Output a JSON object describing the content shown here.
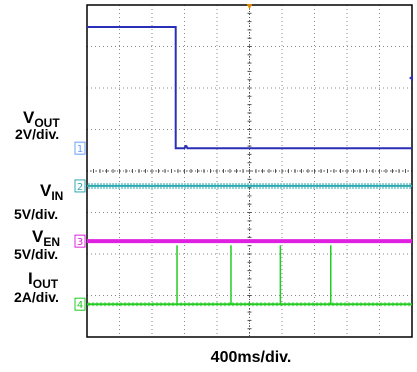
{
  "chart_data": {
    "type": "line",
    "title": "",
    "xlabel": "400ms/div.",
    "x_divisions": 10,
    "y_divisions": 8,
    "grid": true,
    "series": [
      {
        "name": "VOUT",
        "scale": "2V/div.",
        "color": "#2a2fb8",
        "marker": "1",
        "marker_color": "#6aa0ff",
        "x": [
          0,
          2.73,
          2.73,
          3.0,
          3.03,
          3.06,
          3.09,
          10
        ],
        "y": [
          7.47,
          7.47,
          4.55,
          4.55,
          4.6,
          4.6,
          4.55,
          4.55
        ]
      },
      {
        "name": "VIN",
        "scale": "5V/div.",
        "color": "#2fa9b0",
        "marker": "2",
        "marker_color": "#2fa9b0",
        "x": [
          0,
          10
        ],
        "y": [
          3.64,
          3.64
        ]
      },
      {
        "name": "VEN",
        "scale": "5V/div.",
        "color": "#e020e0",
        "marker": "3",
        "marker_color": "#e020e0",
        "x": [
          0,
          10
        ],
        "y": [
          2.31,
          2.31
        ]
      },
      {
        "name": "IOUT",
        "scale": "2A/div.",
        "color": "#22cc22",
        "marker": "4",
        "marker_color": "#22cc22",
        "x": [
          0,
          10
        ],
        "y": [
          0.79,
          0.79
        ],
        "spikes": [
          {
            "x": 2.77,
            "top": 2.21
          },
          {
            "x": 4.43,
            "top": 2.21
          },
          {
            "x": 5.95,
            "top": 2.21
          },
          {
            "x": 7.5,
            "top": 2.21
          }
        ]
      }
    ]
  }
}
